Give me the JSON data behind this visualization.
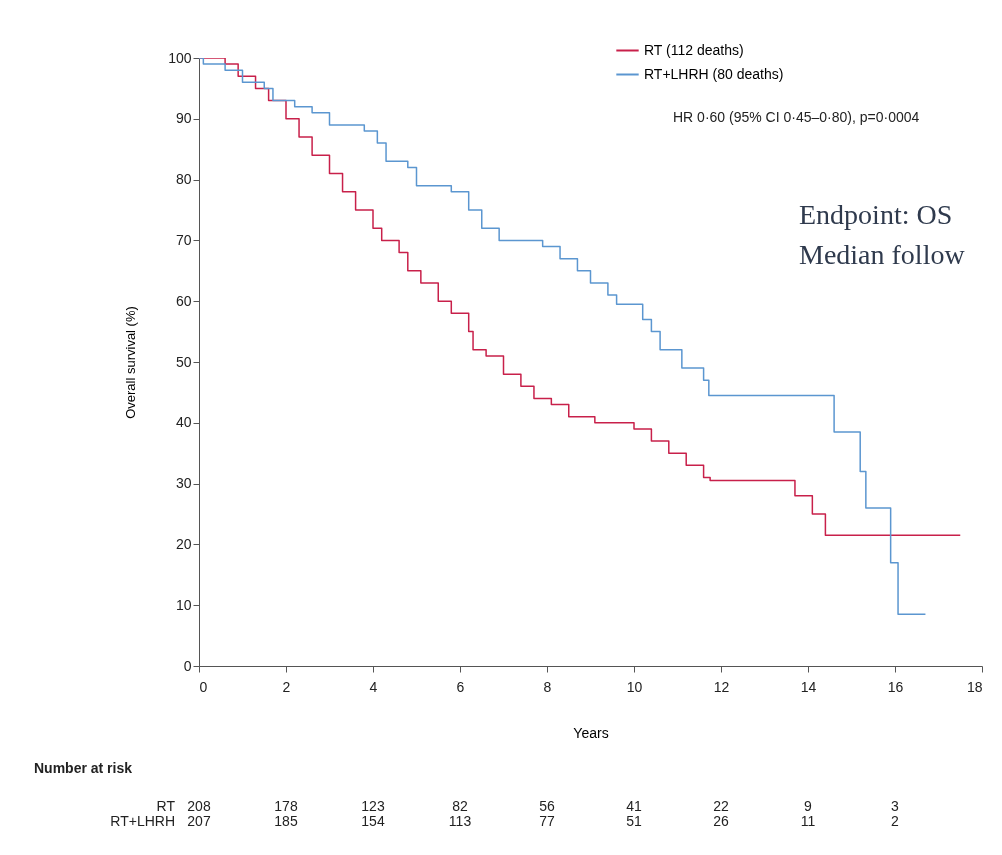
{
  "chart_data": {
    "type": "step",
    "xlabel": "Years",
    "ylabel": "Overall survival (%)",
    "xlim": [
      0,
      18
    ],
    "ylim": [
      0,
      100
    ],
    "xticks": [
      0,
      2,
      4,
      6,
      8,
      10,
      12,
      14,
      16,
      18
    ],
    "yticks": [
      0,
      10,
      20,
      30,
      40,
      50,
      60,
      70,
      80,
      90,
      100
    ],
    "legend": "top right",
    "series": [
      {
        "name": "RT (112 deaths)",
        "color": "#c8204a",
        "x": [
          0,
          0.6,
          0.9,
          1.3,
          1.6,
          2,
          2.3,
          2.6,
          3,
          3.3,
          3.6,
          4,
          4.2,
          4.6,
          4.8,
          5.1,
          5.5,
          5.8,
          6.2,
          6.3,
          6.6,
          7,
          7.4,
          7.7,
          8.1,
          8.5,
          9.1,
          10,
          10.4,
          10.8,
          11.2,
          11.6,
          11.75,
          13.7,
          14.1,
          14.4,
          17.5
        ],
        "values": [
          100,
          99,
          97,
          95,
          93,
          90,
          87,
          84,
          81,
          78,
          75,
          72,
          70,
          68,
          65,
          63,
          60,
          58,
          55,
          52,
          51,
          48,
          46,
          44,
          43,
          41,
          40,
          39,
          37,
          35,
          33,
          31,
          30.5,
          28,
          25,
          21.5,
          21.5
        ]
      },
      {
        "name": "RT+LHRH (80 deaths)",
        "color": "#5b96d0",
        "x": [
          0,
          0.1,
          0.6,
          1,
          1.5,
          1.7,
          2.2,
          2.6,
          3,
          3.8,
          4.1,
          4.3,
          4.8,
          5,
          5.8,
          6.2,
          6.5,
          6.9,
          7.9,
          8.3,
          8.7,
          9,
          9.4,
          9.6,
          10.2,
          10.4,
          10.6,
          11.1,
          11.6,
          11.72,
          14.6,
          15.2,
          15.33,
          15.9,
          16.07,
          16.7
        ],
        "values": [
          100,
          99,
          98,
          96,
          95,
          93,
          92,
          91,
          89,
          88,
          86,
          83,
          82,
          79,
          78,
          75,
          72,
          70,
          69,
          67,
          65,
          63,
          61,
          59.5,
          57,
          55,
          52,
          49,
          47,
          44.5,
          38.5,
          32,
          26,
          17,
          8.5,
          8.5
        ]
      }
    ],
    "annotations": [
      "HR 0·60 (95% CI 0·45–0·80), p=0·0004",
      "Endpoint: OS",
      "Median follow",
      "Number at risk",
      "RT",
      "208",
      "178",
      "123",
      "82",
      "56",
      "41",
      "22",
      "9",
      "3",
      "RT+LHRH",
      "207",
      "185",
      "154",
      "113",
      "77",
      "51",
      "26",
      "11",
      "2"
    ]
  }
}
